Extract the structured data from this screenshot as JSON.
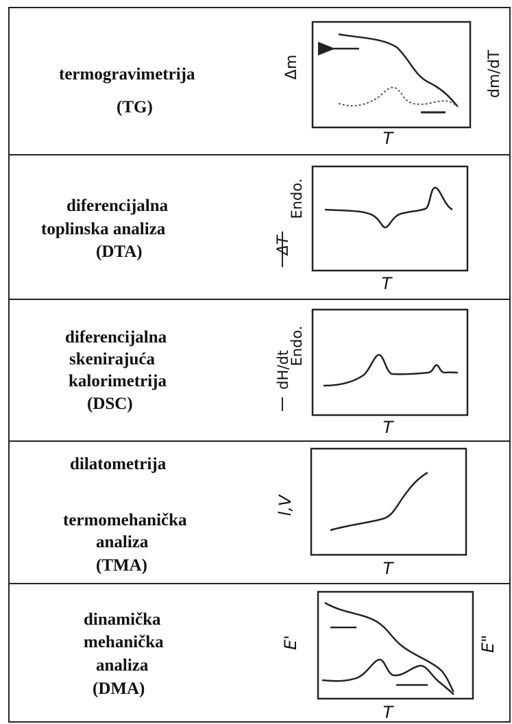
{
  "panels": [
    {
      "label_lines": [
        "termogravimetrija",
        "(TG)"
      ],
      "y_label_left": "Δm",
      "y_label_right": "dm/dT",
      "x_label": "T"
    },
    {
      "label_lines": [
        "diferencijalna",
        "toplinska analiza",
        "(DTA)"
      ],
      "y_label_left": "ΔT",
      "y_label_left_2": "Endo.",
      "x_label": "T"
    },
    {
      "label_lines": [
        "diferencijalna",
        "skenirajuća",
        "kalorimetrija",
        "(DSC)"
      ],
      "y_label_left": "dH/dt",
      "y_label_left_2": "Endo.",
      "x_label": "T"
    },
    {
      "label_lines": [
        "dilatometrija",
        "",
        "termomehanička",
        "analiza",
        "(TMA)"
      ],
      "y_label_left": "l,V",
      "x_label": "T"
    },
    {
      "label_lines": [
        "dinamička",
        "mehanička",
        "analiza",
        "(DMA)"
      ],
      "y_label_left": "E'",
      "y_label_right": "E\"",
      "x_label": "T"
    }
  ]
}
